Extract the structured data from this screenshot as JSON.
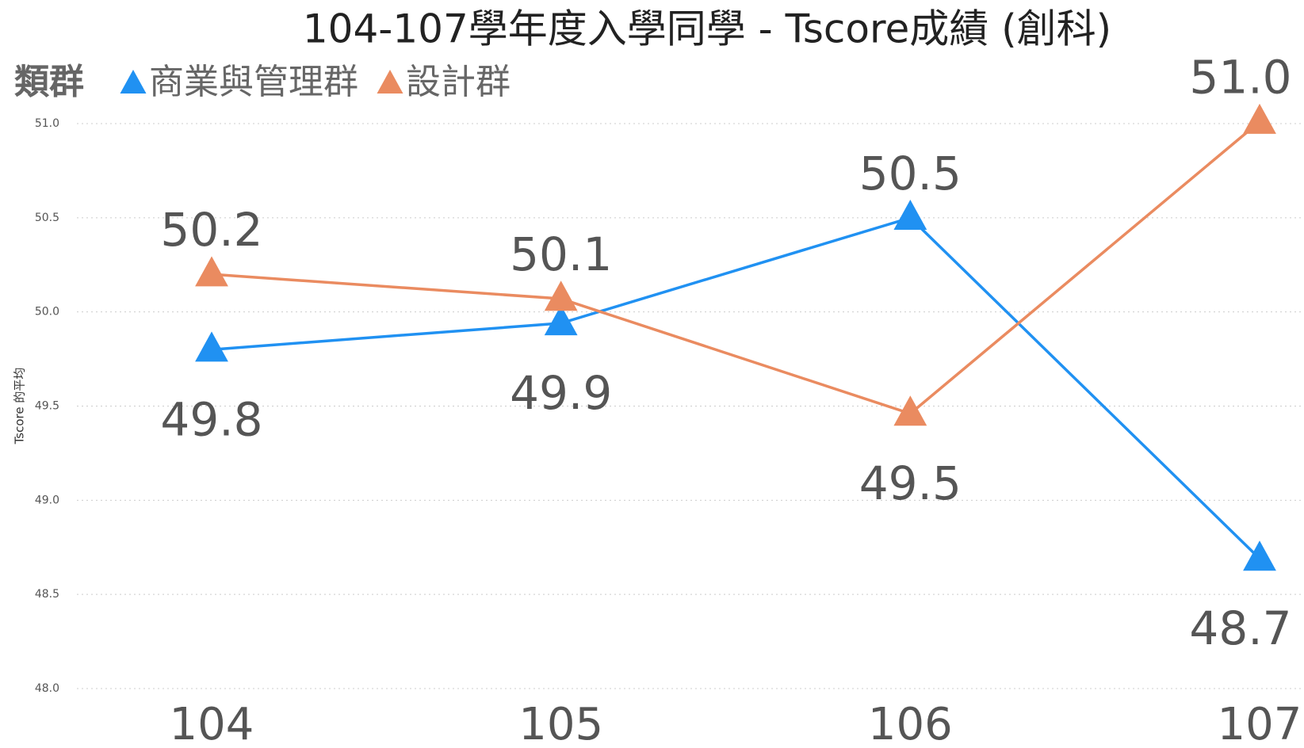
{
  "chart_data": {
    "type": "line",
    "title": "104-107學年度入學同學 - Tscore成績 (創科)",
    "legend_title": "類群",
    "y_label": "Tscore 的平均",
    "categories": [
      "104",
      "105",
      "106",
      "107"
    ],
    "series": [
      {
        "name": "商業與管理群",
        "color": "#2091f2",
        "values": [
          49.8,
          49.94,
          50.5,
          48.69
        ],
        "value_labels": [
          "49.8",
          "49.9",
          "50.5",
          "48.7"
        ]
      },
      {
        "name": "設計群",
        "color": "#ea8b60",
        "values": [
          50.2,
          50.07,
          49.46,
          51.01
        ],
        "value_labels": [
          "50.2",
          "50.1",
          "49.5",
          "51.0"
        ]
      }
    ],
    "ylim": [
      48,
      51
    ],
    "yticks": [
      {
        "value": 48,
        "label": "48.0"
      },
      48.5,
      {
        "value": 49,
        "label": "49.0"
      },
      49.5,
      {
        "value": 50,
        "label": "50.0"
      },
      50.5,
      {
        "value": 51,
        "label": "51.0"
      }
    ],
    "grid": true,
    "legend": "top-left"
  }
}
